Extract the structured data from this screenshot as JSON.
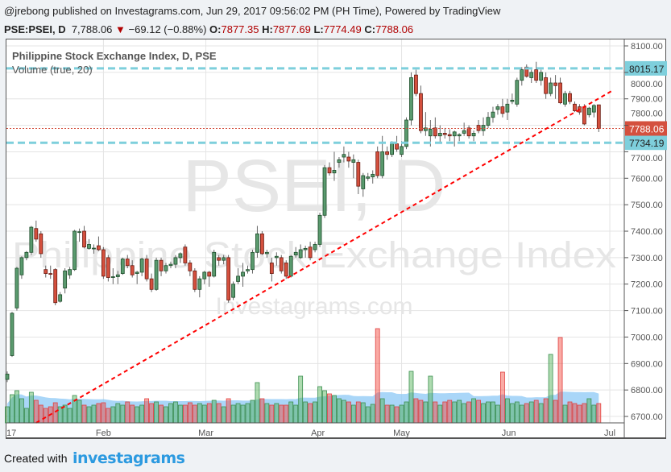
{
  "header": {
    "published": "@jrebong published on Investagrams.com, Jun 29, 2017 09:56:02 PM (PH Time), Powered by TradingView",
    "symbol": "PSE:PSEI, D",
    "last": "7,788.06",
    "change": "−69.12 (−0.88%)",
    "direction_icon": "down-triangle-icon",
    "o_label": "O:",
    "o": "7877.35",
    "h_label": "H:",
    "h": "7877.69",
    "l_label": "L:",
    "l": "7774.49",
    "c_label": "C:",
    "c": "7788.06"
  },
  "legend": {
    "title": "Philippine Stock Exchange Index, D, PSE",
    "volume": "Volume (true, 20)"
  },
  "watermark": {
    "symbol": "PSEI, D",
    "name": "Philippine Stock Exchange Index",
    "site": "Investagrams.com"
  },
  "footer": {
    "created_with": "Created with",
    "logo": "investagrams"
  },
  "colors": {
    "up": "#5a9a6e",
    "down": "#d4503e",
    "level_line": "#7ecfdc",
    "trendline": "#ff0000",
    "last_price": "#d4503e",
    "volume_ma": "#8cc8f5"
  },
  "chart_data": {
    "type": "candlestick",
    "title": "Philippine Stock Exchange Index, D, PSE",
    "ylim": [
      6650,
      8130
    ],
    "y_ticks": [
      "8100.00",
      "8000.00",
      "7900.00",
      "7800.00",
      "7700.00",
      "7600.00",
      "7500.00",
      "7400.00",
      "7300.00",
      "7200.00",
      "7100.00",
      "7000.00",
      "6900.00",
      "6800.00",
      "6700.00"
    ],
    "x_ticks": [
      {
        "label": "17",
        "bar": -1
      },
      {
        "label": "Feb",
        "bar": 20
      },
      {
        "label": "Mar",
        "bar": 41.3
      },
      {
        "label": "Apr",
        "bar": 64.6
      },
      {
        "label": "May",
        "bar": 82
      },
      {
        "label": "Jun",
        "bar": 104.3
      },
      {
        "label": "Jul",
        "bar": 125.3
      }
    ],
    "grid": true,
    "levels": [
      {
        "price": 8015.17,
        "label": "8015.17"
      },
      {
        "price": 7734.19,
        "label": "7734.19"
      }
    ],
    "last_price": {
      "price": 7788.06,
      "label": "7788.06"
    },
    "trendline": {
      "start_bar": 6,
      "start_price": 6676,
      "end_bar": 126,
      "end_price": 7933
    },
    "volume_ma_period": 20,
    "candles_ohlcv": [
      [
        6840,
        6870,
        6830,
        6860,
        20
      ],
      [
        6930,
        7095,
        6925,
        7090,
        35
      ],
      [
        7110,
        7265,
        7100,
        7260,
        40
      ],
      [
        7235,
        7305,
        7220,
        7300,
        30
      ],
      [
        7300,
        7325,
        7290,
        7320,
        18
      ],
      [
        7320,
        7420,
        7310,
        7415,
        38
      ],
      [
        7410,
        7440,
        7360,
        7370,
        28
      ],
      [
        7390,
        7400,
        7300,
        7315,
        22
      ],
      [
        7255,
        7270,
        7225,
        7240,
        18
      ],
      [
        7240,
        7270,
        7220,
        7238,
        20
      ],
      [
        7255,
        7260,
        7120,
        7130,
        25
      ],
      [
        7135,
        7170,
        7130,
        7160,
        20
      ],
      [
        7185,
        7260,
        7165,
        7250,
        22
      ],
      [
        7235,
        7265,
        7220,
        7255,
        18
      ],
      [
        7255,
        7405,
        7250,
        7400,
        34
      ],
      [
        7395,
        7410,
        7360,
        7398,
        28
      ],
      [
        7400,
        7420,
        7335,
        7340,
        22
      ],
      [
        7335,
        7370,
        7330,
        7350,
        20
      ],
      [
        7335,
        7350,
        7315,
        7336,
        22
      ],
      [
        7345,
        7380,
        7325,
        7330,
        24
      ],
      [
        7330,
        7340,
        7220,
        7230,
        25
      ],
      [
        7300,
        7310,
        7210,
        7225,
        18
      ],
      [
        7225,
        7260,
        7200,
        7228,
        20
      ],
      [
        7228,
        7250,
        7200,
        7235,
        24
      ],
      [
        7240,
        7300,
        7235,
        7295,
        22
      ],
      [
        7295,
        7310,
        7260,
        7270,
        26
      ],
      [
        7270,
        7290,
        7225,
        7235,
        22
      ],
      [
        7240,
        7250,
        7200,
        7245,
        20
      ],
      [
        7245,
        7300,
        7230,
        7295,
        22
      ],
      [
        7295,
        7310,
        7210,
        7220,
        30
      ],
      [
        7220,
        7240,
        7170,
        7180,
        24
      ],
      [
        7180,
        7300,
        7175,
        7290,
        26
      ],
      [
        7290,
        7300,
        7230,
        7250,
        22
      ],
      [
        7250,
        7280,
        7240,
        7270,
        20
      ],
      [
        7270,
        7285,
        7260,
        7275,
        24
      ],
      [
        7275,
        7310,
        7260,
        7300,
        26
      ],
      [
        7300,
        7320,
        7280,
        7315,
        22
      ],
      [
        7340,
        7350,
        7270,
        7280,
        22
      ],
      [
        7280,
        7290,
        7230,
        7250,
        25
      ],
      [
        7250,
        7260,
        7170,
        7180,
        22
      ],
      [
        7180,
        7230,
        7150,
        7220,
        24
      ],
      [
        7220,
        7250,
        7200,
        7245,
        22
      ],
      [
        7245,
        7250,
        7190,
        7230,
        24
      ],
      [
        7230,
        7330,
        7225,
        7320,
        28
      ],
      [
        7300,
        7310,
        7270,
        7290,
        24
      ],
      [
        7290,
        7310,
        7275,
        7300,
        20
      ],
      [
        7300,
        7310,
        7130,
        7140,
        30
      ],
      [
        7150,
        7210,
        7140,
        7200,
        22
      ],
      [
        7210,
        7260,
        7200,
        7230,
        24
      ],
      [
        7230,
        7280,
        7190,
        7245,
        22
      ],
      [
        7250,
        7270,
        7240,
        7255,
        24
      ],
      [
        7255,
        7330,
        7240,
        7320,
        28
      ],
      [
        7320,
        7420,
        7300,
        7390,
        50
      ],
      [
        7390,
        7400,
        7310,
        7315,
        30
      ],
      [
        7315,
        7330,
        7300,
        7320,
        24
      ],
      [
        7280,
        7300,
        7210,
        7240,
        22
      ],
      [
        7300,
        7320,
        7270,
        7305,
        24
      ],
      [
        7300,
        7310,
        7240,
        7250,
        22
      ],
      [
        7280,
        7290,
        7220,
        7230,
        22
      ],
      [
        7230,
        7310,
        7225,
        7305,
        26
      ],
      [
        7310,
        7340,
        7300,
        7320,
        22
      ],
      [
        7300,
        7350,
        7295,
        7330,
        58
      ],
      [
        7330,
        7345,
        7300,
        7335,
        26
      ],
      [
        7340,
        7360,
        7290,
        7300,
        24
      ],
      [
        7330,
        7360,
        7320,
        7350,
        26
      ],
      [
        7350,
        7470,
        7340,
        7460,
        45
      ],
      [
        7460,
        7650,
        7450,
        7640,
        40
      ],
      [
        7640,
        7660,
        7610,
        7620,
        36
      ],
      [
        7620,
        7700,
        7590,
        7630,
        34
      ],
      [
        7660,
        7680,
        7640,
        7670,
        30
      ],
      [
        7680,
        7720,
        7660,
        7690,
        28
      ],
      [
        7680,
        7700,
        7640,
        7665,
        26
      ],
      [
        7660,
        7690,
        7600,
        7670,
        22
      ],
      [
        7660,
        7670,
        7540,
        7570,
        26
      ],
      [
        7560,
        7620,
        7530,
        7610,
        25
      ],
      [
        7600,
        7620,
        7590,
        7605,
        20
      ],
      [
        7605,
        7630,
        7580,
        7615,
        23
      ],
      [
        7700,
        7720,
        7600,
        7610,
        117
      ],
      [
        7610,
        7760,
        7600,
        7700,
        30
      ],
      [
        7700,
        7720,
        7670,
        7690,
        22
      ],
      [
        7690,
        7740,
        7680,
        7730,
        22
      ],
      [
        7730,
        7760,
        7700,
        7710,
        20
      ],
      [
        7690,
        7740,
        7680,
        7720,
        22
      ],
      [
        7720,
        7830,
        7710,
        7820,
        26
      ],
      [
        7820,
        8000,
        7800,
        7980,
        64
      ],
      [
        7990,
        8010,
        7910,
        7920,
        30
      ],
      [
        7920,
        7950,
        7770,
        7780,
        28
      ],
      [
        7780,
        7850,
        7760,
        7790,
        26
      ],
      [
        7760,
        7820,
        7720,
        7785,
        58
      ],
      [
        7790,
        7830,
        7750,
        7760,
        26
      ],
      [
        7760,
        7800,
        7730,
        7770,
        22
      ],
      [
        7770,
        7790,
        7750,
        7765,
        26
      ],
      [
        7765,
        7785,
        7740,
        7760,
        28
      ],
      [
        7760,
        7780,
        7720,
        7775,
        26
      ],
      [
        7760,
        7770,
        7740,
        7765,
        28
      ],
      [
        7770,
        7810,
        7760,
        7780,
        24
      ],
      [
        7790,
        7800,
        7750,
        7760,
        26
      ],
      [
        7760,
        7780,
        7740,
        7770,
        30
      ],
      [
        7800,
        7820,
        7770,
        7780,
        28
      ],
      [
        7780,
        7830,
        7760,
        7800,
        24
      ],
      [
        7800,
        7850,
        7790,
        7830,
        26
      ],
      [
        7830,
        7870,
        7810,
        7850,
        26
      ],
      [
        7860,
        7880,
        7840,
        7870,
        22
      ],
      [
        7870,
        7900,
        7830,
        7845,
        63
      ],
      [
        7850,
        7900,
        7820,
        7880,
        30
      ],
      [
        7890,
        7920,
        7880,
        7895,
        24
      ],
      [
        7880,
        7980,
        7870,
        7970,
        26
      ],
      [
        7970,
        8020,
        7950,
        8010,
        22
      ],
      [
        8020,
        8030,
        7980,
        7985,
        24
      ],
      [
        7980,
        8010,
        7960,
        8000,
        26
      ],
      [
        8010,
        8040,
        7960,
        7970,
        28
      ],
      [
        7970,
        8010,
        7950,
        8000,
        24
      ],
      [
        7980,
        8000,
        7900,
        7920,
        30
      ],
      [
        7920,
        7980,
        7910,
        7960,
        85
      ],
      [
        7960,
        7990,
        7900,
        7950,
        28
      ],
      [
        7960,
        7980,
        7880,
        7885,
        106
      ],
      [
        7880,
        7930,
        7870,
        7920,
        22
      ],
      [
        7920,
        7930,
        7880,
        7890,
        26
      ],
      [
        7880,
        7890,
        7850,
        7855,
        24
      ],
      [
        7870,
        7880,
        7840,
        7850,
        22
      ],
      [
        7870,
        7880,
        7800,
        7805,
        24
      ],
      [
        7840,
        7870,
        7830,
        7865,
        30
      ],
      [
        7850,
        7880,
        7830,
        7875,
        22
      ],
      [
        7877.35,
        7877.69,
        7774.49,
        7788.06,
        24
      ]
    ]
  }
}
